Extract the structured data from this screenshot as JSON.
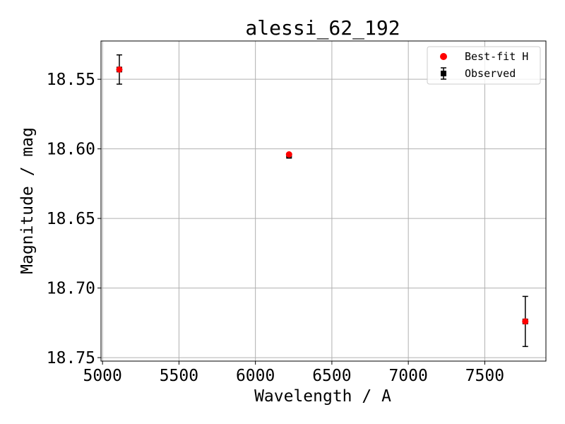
{
  "chart_data": {
    "type": "scatter",
    "title": "alessi_62_192",
    "xlabel": "Wavelength / A",
    "ylabel": "Magnitude / mag",
    "xlim": [
      4990,
      7900
    ],
    "ylim": [
      18.7525,
      18.5225
    ],
    "y_inverted": true,
    "grid": true,
    "legend_position": "top-right",
    "xticks": [
      5000,
      5500,
      6000,
      6500,
      7000,
      7500
    ],
    "xtick_labels": [
      "5000",
      "5500",
      "6000",
      "6500",
      "7000",
      "7500"
    ],
    "yticks": [
      18.55,
      18.6,
      18.65,
      18.7,
      18.75
    ],
    "ytick_labels": [
      "18.55",
      "18.60",
      "18.65",
      "18.70",
      "18.75"
    ],
    "series": [
      {
        "name": "Best-fit H",
        "marker": "circle",
        "color": "#ff0000",
        "x": [
          5110,
          6220,
          7765
        ],
        "y": [
          18.543,
          18.604,
          18.724
        ]
      },
      {
        "name": "Observed",
        "marker": "square",
        "color": "#000000",
        "x": [
          5110,
          6220,
          7765
        ],
        "y": [
          18.543,
          18.605,
          18.724
        ],
        "yerr": [
          0.0105,
          0.0005,
          0.018
        ]
      }
    ]
  }
}
